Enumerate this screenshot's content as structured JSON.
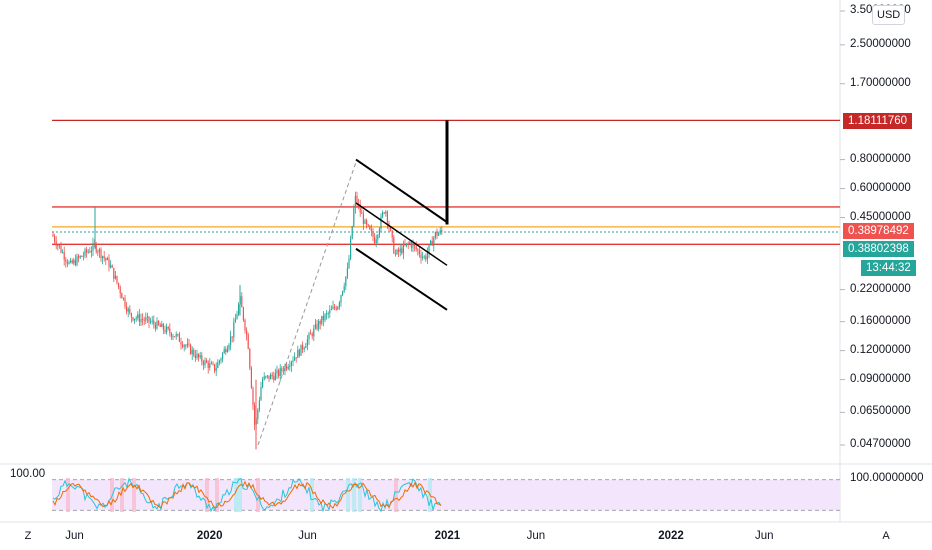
{
  "currency_button": "USD",
  "price_axis": {
    "labels": [
      {
        "text": "3.50000000",
        "value": 3.5
      },
      {
        "text": "2.50000000",
        "value": 2.5
      },
      {
        "text": "1.70000000",
        "value": 1.7
      },
      {
        "text": "0.80000000",
        "value": 0.8
      },
      {
        "text": "0.60000000",
        "value": 0.6
      },
      {
        "text": "0.45000000",
        "value": 0.45
      },
      {
        "text": "0.22000000",
        "value": 0.22
      },
      {
        "text": "0.16000000",
        "value": 0.16
      },
      {
        "text": "0.12000000",
        "value": 0.12
      },
      {
        "text": "0.09000000",
        "value": 0.09
      },
      {
        "text": "0.06500000",
        "value": 0.065
      },
      {
        "text": "0.04700000",
        "value": 0.047
      }
    ],
    "scale": "log"
  },
  "price_tags": {
    "target": {
      "text": "1.18111760",
      "value": 1.1811176,
      "color": "#c62828"
    },
    "last": {
      "text": "0.38978492",
      "value": 0.38978492,
      "color": "#ef5350"
    },
    "level": {
      "text": "0.38802398",
      "value": 0.38802398,
      "color": "#26a69a"
    },
    "countdown": {
      "text": "13:44:32",
      "color": "#26a69a"
    }
  },
  "horizontal_levels": [
    {
      "value": 1.1811176,
      "color": "#c62828"
    },
    {
      "value": 0.5,
      "color": "#e53935"
    },
    {
      "value": 0.41,
      "color": "#f5a623"
    },
    {
      "value": 0.38978492,
      "color": "#26a69a"
    },
    {
      "value": 0.345,
      "color": "#e53935"
    }
  ],
  "indicator": {
    "top_label": "100.00",
    "axis_label": "100.00000000"
  },
  "time_axis": [
    {
      "text": "Jun",
      "pos": 0.08
    },
    {
      "text": "2020",
      "pos": 0.225
    },
    {
      "text": "Jun",
      "pos": 0.33
    },
    {
      "text": "2021",
      "pos": 0.48
    },
    {
      "text": "Jun",
      "pos": 0.575
    },
    {
      "text": "2022",
      "pos": 0.72
    },
    {
      "text": "Jun",
      "pos": 0.82
    }
  ],
  "corner_buttons": {
    "left": "Z",
    "right": "A"
  },
  "colors": {
    "up": "#26a69a",
    "down": "#ef5350",
    "indicator_band": "#f3e5fb"
  }
}
